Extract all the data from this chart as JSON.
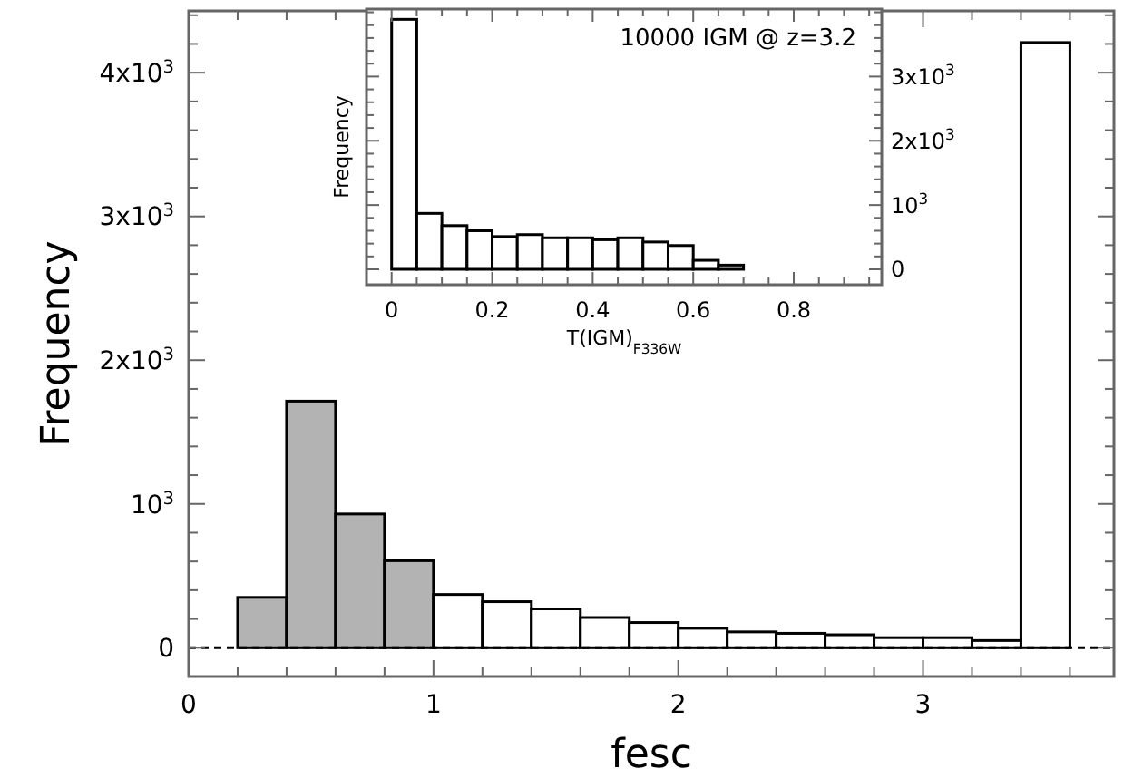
{
  "chart_data": [
    {
      "type": "histogram",
      "xlabel": "fesc",
      "ylabel": "Frequency",
      "bins": [
        0,
        0.2,
        0.4,
        0.6,
        0.8,
        1.0,
        1.2,
        1.4,
        1.6,
        1.8,
        2.0,
        2.2,
        2.4,
        2.6,
        2.8,
        3.0,
        3.2,
        3.4,
        3.6
      ],
      "values": [
        0,
        350,
        1715,
        930,
        605,
        370,
        320,
        270,
        210,
        175,
        135,
        110,
        100,
        90,
        70,
        70,
        50,
        4210
      ],
      "colors": [
        "#ffffff",
        "#b3b3b3",
        "#b3b3b3",
        "#b3b3b3",
        "#b3b3b3",
        "#ffffff",
        "#ffffff",
        "#ffffff",
        "#ffffff",
        "#ffffff",
        "#ffffff",
        "#ffffff",
        "#ffffff",
        "#ffffff",
        "#ffffff",
        "#ffffff",
        "#ffffff",
        "#ffffff"
      ],
      "xlim": [
        0,
        3.78
      ],
      "ylim": [
        -200,
        4430
      ],
      "xticks": [
        0,
        {
          "value": 0.2,
          "label": null
        },
        {
          "value": 0.4,
          "label": null
        },
        {
          "value": 0.6,
          "label": null
        },
        {
          "value": 0.8,
          "label": null
        },
        1,
        {
          "value": 1.2,
          "label": null
        },
        {
          "value": 1.4,
          "label": null
        },
        {
          "value": 1.6,
          "label": null
        },
        {
          "value": 1.8,
          "label": null
        },
        2,
        {
          "value": 2.2,
          "label": null
        },
        {
          "value": 2.4,
          "label": null
        },
        {
          "value": 2.6,
          "label": null
        },
        {
          "value": 2.8,
          "label": null
        },
        3,
        {
          "value": 3.2,
          "label": null
        },
        {
          "value": 3.4,
          "label": null
        },
        {
          "value": 3.6,
          "label": null
        }
      ],
      "yticks": [
        0,
        {
          "value": 200,
          "label": null
        },
        {
          "value": 400,
          "label": null
        },
        {
          "value": 600,
          "label": null
        },
        {
          "value": 800,
          "label": null
        },
        {
          "value": 1000,
          "label": "10$^{3}$"
        },
        {
          "value": 1200,
          "label": null
        },
        {
          "value": 1400,
          "label": null
        },
        {
          "value": 1600,
          "label": null
        },
        {
          "value": 1800,
          "label": null
        },
        {
          "value": 2000,
          "label": "2x10$^{3}$"
        },
        {
          "value": 2200,
          "label": null
        },
        {
          "value": 2400,
          "label": null
        },
        {
          "value": 2600,
          "label": null
        },
        {
          "value": 2800,
          "label": null
        },
        {
          "value": 3000,
          "label": "3x10$^{3}$"
        },
        {
          "value": 3200,
          "label": null
        },
        {
          "value": 3400,
          "label": null
        },
        {
          "value": 3600,
          "label": null
        },
        {
          "value": 3800,
          "label": null
        },
        {
          "value": 4000,
          "label": "4x10$^{3}$"
        },
        {
          "value": 4200,
          "label": null
        },
        {
          "value": 4400,
          "label": null
        }
      ],
      "ref_lines": [
        {
          "axis": "y",
          "value": 0,
          "color": "#000000",
          "line_style": "dashed"
        }
      ],
      "grid": false
    },
    {
      "type": "histogram",
      "xlabel": "T(IGM)$_{F336W}$",
      "ylabel": "Frequency",
      "annotations": [
        "10000 IGM @ z=3.2"
      ],
      "bins": [
        -0.05,
        0,
        0.05,
        0.1,
        0.15,
        0.2,
        0.25,
        0.3,
        0.35,
        0.4,
        0.45,
        0.5,
        0.55,
        0.6,
        0.65,
        0.7,
        0.75,
        0.8,
        0.85,
        0.9,
        0.95
      ],
      "values": [
        0,
        3890,
        870,
        680,
        600,
        510,
        540,
        490,
        490,
        460,
        490,
        425,
        370,
        140,
        65,
        0,
        0,
        0,
        0,
        0
      ],
      "color": "#ffffff",
      "xlim": [
        -0.05,
        0.975
      ],
      "ylim": [
        -240,
        4050
      ],
      "xticks": [
        0,
        {
          "value": 0.05,
          "label": null
        },
        {
          "value": 0.1,
          "label": null
        },
        {
          "value": 0.15,
          "label": null
        },
        0.2,
        {
          "value": 0.25,
          "label": null
        },
        {
          "value": 0.3,
          "label": null
        },
        {
          "value": 0.35,
          "label": null
        },
        0.4,
        {
          "value": 0.45,
          "label": null
        },
        {
          "value": 0.5,
          "label": null
        },
        {
          "value": 0.55,
          "label": null
        },
        0.6,
        {
          "value": 0.65,
          "label": null
        },
        {
          "value": 0.7,
          "label": null
        },
        {
          "value": 0.75,
          "label": null
        },
        0.8,
        {
          "value": 0.85,
          "label": null
        },
        {
          "value": 0.9,
          "label": null
        },
        {
          "value": 0.95,
          "label": null
        }
      ],
      "yticks": [
        0,
        {
          "value": 200,
          "label": null
        },
        {
          "value": 400,
          "label": null
        },
        {
          "value": 600,
          "label": null
        },
        {
          "value": 800,
          "label": null
        },
        {
          "value": 1000,
          "label": "10$^{3}$"
        },
        {
          "value": 1200,
          "label": null
        },
        {
          "value": 1400,
          "label": null
        },
        {
          "value": 1600,
          "label": null
        },
        {
          "value": 1800,
          "label": null
        },
        {
          "value": 2000,
          "label": "2x10$^{3}$"
        },
        {
          "value": 2200,
          "label": null
        },
        {
          "value": 2400,
          "label": null
        },
        {
          "value": 2600,
          "label": null
        },
        {
          "value": 2800,
          "label": null
        },
        {
          "value": 3000,
          "label": "3x10$^{3}$"
        },
        {
          "value": 3200,
          "label": null
        },
        {
          "value": 3400,
          "label": null
        },
        {
          "value": 3600,
          "label": null
        },
        {
          "value": 3800,
          "label": null
        },
        {
          "value": 4000,
          "label": null
        }
      ],
      "grid": false
    }
  ]
}
